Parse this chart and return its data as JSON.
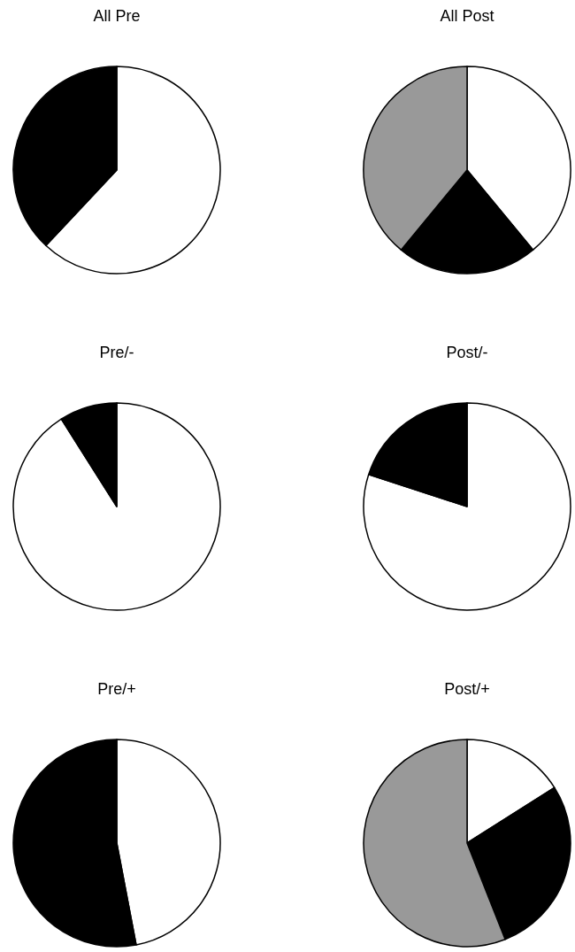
{
  "chart_data": [
    {
      "type": "pie",
      "title": "All Pre",
      "categories": [
        null,
        null
      ],
      "values": [
        62,
        38
      ],
      "colors": [
        "#ffffff",
        "#000000"
      ]
    },
    {
      "type": "pie",
      "title": "All Post",
      "categories": [
        null,
        null,
        null
      ],
      "values": [
        39,
        22,
        39
      ],
      "colors": [
        "#ffffff",
        "#000000",
        "#999999"
      ]
    },
    {
      "type": "pie",
      "title": "Pre/-",
      "categories": [
        null,
        null
      ],
      "values": [
        91,
        9
      ],
      "colors": [
        "#ffffff",
        "#000000"
      ]
    },
    {
      "type": "pie",
      "title": "Post/-",
      "categories": [
        null,
        null
      ],
      "values": [
        80,
        20
      ],
      "colors": [
        "#ffffff",
        "#000000"
      ]
    },
    {
      "type": "pie",
      "title": "Pre/+",
      "categories": [
        null,
        null
      ],
      "values": [
        47,
        53
      ],
      "colors": [
        "#ffffff",
        "#000000"
      ]
    },
    {
      "type": "pie",
      "title": "Post/+",
      "categories": [
        null,
        null,
        null
      ],
      "values": [
        16,
        28,
        56
      ],
      "colors": [
        "#ffffff",
        "#000000",
        "#999999"
      ]
    }
  ]
}
